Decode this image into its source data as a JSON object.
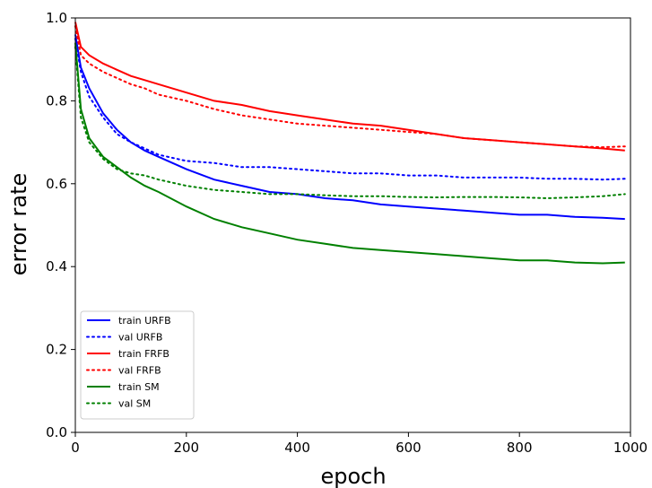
{
  "chart_data": {
    "type": "line",
    "title": "",
    "xlabel": "epoch",
    "ylabel": "error rate",
    "xlim": [
      0,
      1000
    ],
    "ylim": [
      0.0,
      1.0
    ],
    "xticks": [
      0,
      200,
      400,
      600,
      800,
      1000
    ],
    "yticks": [
      0.0,
      0.2,
      0.4,
      0.6,
      0.8,
      1.0
    ],
    "xtick_labels": [
      "0",
      "200",
      "400",
      "600",
      "800",
      "1000"
    ],
    "ytick_labels": [
      "0.0",
      "0.2",
      "0.4",
      "0.6",
      "0.8",
      "1.0"
    ],
    "grid": false,
    "legend_position": "lower-left",
    "series": [
      {
        "name": "train URFB",
        "color": "#0000ff",
        "style": "solid",
        "x": [
          0,
          10,
          25,
          50,
          75,
          100,
          125,
          150,
          200,
          250,
          300,
          350,
          400,
          450,
          500,
          550,
          600,
          650,
          700,
          750,
          800,
          850,
          900,
          950,
          990
        ],
        "y": [
          0.96,
          0.88,
          0.83,
          0.77,
          0.73,
          0.7,
          0.68,
          0.665,
          0.635,
          0.61,
          0.595,
          0.58,
          0.575,
          0.565,
          0.56,
          0.55,
          0.545,
          0.54,
          0.535,
          0.53,
          0.525,
          0.525,
          0.52,
          0.518,
          0.515
        ]
      },
      {
        "name": "val URFB",
        "color": "#0000ff",
        "style": "dotted",
        "x": [
          0,
          10,
          25,
          50,
          75,
          100,
          125,
          150,
          200,
          250,
          300,
          350,
          400,
          450,
          500,
          550,
          600,
          650,
          700,
          750,
          800,
          850,
          900,
          950,
          990
        ],
        "y": [
          0.95,
          0.87,
          0.81,
          0.76,
          0.72,
          0.7,
          0.685,
          0.67,
          0.655,
          0.65,
          0.64,
          0.64,
          0.635,
          0.63,
          0.625,
          0.625,
          0.62,
          0.62,
          0.615,
          0.615,
          0.615,
          0.612,
          0.612,
          0.61,
          0.612
        ]
      },
      {
        "name": "train FRFB",
        "color": "#ff0000",
        "style": "solid",
        "x": [
          0,
          10,
          25,
          50,
          75,
          100,
          125,
          150,
          200,
          250,
          300,
          350,
          400,
          450,
          500,
          550,
          600,
          650,
          700,
          750,
          800,
          850,
          900,
          950,
          990
        ],
        "y": [
          0.99,
          0.93,
          0.91,
          0.89,
          0.875,
          0.86,
          0.85,
          0.84,
          0.82,
          0.8,
          0.79,
          0.775,
          0.765,
          0.755,
          0.745,
          0.74,
          0.73,
          0.72,
          0.71,
          0.705,
          0.7,
          0.695,
          0.69,
          0.685,
          0.68
        ]
      },
      {
        "name": "val FRFB",
        "color": "#ff0000",
        "style": "dotted",
        "x": [
          0,
          10,
          25,
          50,
          75,
          100,
          125,
          150,
          200,
          250,
          300,
          350,
          400,
          450,
          500,
          550,
          600,
          650,
          700,
          750,
          800,
          850,
          900,
          950,
          990
        ],
        "y": [
          0.98,
          0.91,
          0.89,
          0.87,
          0.855,
          0.84,
          0.83,
          0.815,
          0.8,
          0.78,
          0.765,
          0.755,
          0.745,
          0.74,
          0.735,
          0.73,
          0.725,
          0.72,
          0.71,
          0.705,
          0.7,
          0.695,
          0.69,
          0.688,
          0.69
        ]
      },
      {
        "name": "train SM",
        "color": "#008000",
        "style": "solid",
        "x": [
          0,
          10,
          25,
          50,
          75,
          100,
          125,
          150,
          200,
          250,
          300,
          350,
          400,
          450,
          500,
          550,
          600,
          650,
          700,
          750,
          800,
          850,
          900,
          950,
          990
        ],
        "y": [
          0.94,
          0.78,
          0.71,
          0.665,
          0.64,
          0.615,
          0.595,
          0.58,
          0.545,
          0.515,
          0.495,
          0.48,
          0.465,
          0.455,
          0.445,
          0.44,
          0.435,
          0.43,
          0.425,
          0.42,
          0.415,
          0.415,
          0.41,
          0.408,
          0.41
        ]
      },
      {
        "name": "val SM",
        "color": "#008000",
        "style": "dotted",
        "x": [
          0,
          10,
          25,
          50,
          75,
          100,
          125,
          150,
          200,
          250,
          300,
          350,
          400,
          450,
          500,
          550,
          600,
          650,
          700,
          750,
          800,
          850,
          900,
          950,
          990
        ],
        "y": [
          0.93,
          0.76,
          0.7,
          0.66,
          0.635,
          0.625,
          0.62,
          0.61,
          0.595,
          0.585,
          0.58,
          0.575,
          0.575,
          0.572,
          0.57,
          0.57,
          0.568,
          0.567,
          0.568,
          0.568,
          0.567,
          0.565,
          0.567,
          0.57,
          0.575
        ]
      }
    ]
  }
}
